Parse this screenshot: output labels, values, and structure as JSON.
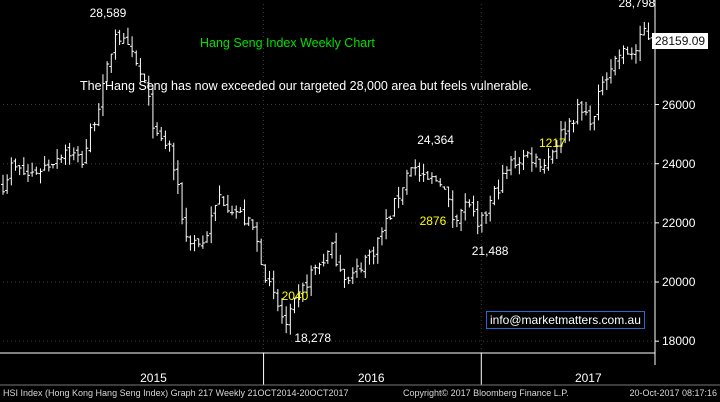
{
  "chart_data": {
    "type": "ohlc",
    "title": "Hang Seng Index Weekly Chart",
    "subtitle": "The Hang Seng has now exceeded our targeted 28,000 area but feels vulnerable.",
    "ylim": [
      17600,
      29400
    ],
    "yticks": [
      18000,
      20000,
      22000,
      24000,
      26000
    ],
    "ytick_labels": [
      "18000",
      "20000",
      "22000",
      "24000",
      "26000"
    ],
    "last_value": 28159.09,
    "last_value_label": "28159.09",
    "xlim": [
      "2014-10-20",
      "2017-10-20"
    ],
    "year_labels": [
      {
        "label": "2015",
        "date": "2015-07-01"
      },
      {
        "label": "2016",
        "date": "2016-07-01"
      },
      {
        "label": "2017",
        "date": "2017-07-01"
      }
    ],
    "year_boundaries": [
      "2016-01-01",
      "2017-01-01"
    ],
    "anchor_closes": [
      [
        "2014-10-20",
        23300
      ],
      [
        "2014-11-03",
        23900
      ],
      [
        "2014-12-01",
        23600
      ],
      [
        "2015-01-05",
        24000
      ],
      [
        "2015-02-02",
        24500
      ],
      [
        "2015-03-02",
        24100
      ],
      [
        "2015-04-06",
        26500
      ],
      [
        "2015-04-27",
        28500
      ],
      [
        "2015-05-25",
        27600
      ],
      [
        "2015-06-15",
        26700
      ],
      [
        "2015-07-06",
        24800
      ],
      [
        "2015-07-27",
        24600
      ],
      [
        "2015-08-24",
        21500
      ],
      [
        "2015-09-21",
        21300
      ],
      [
        "2015-10-19",
        22900
      ],
      [
        "2015-11-16",
        22400
      ],
      [
        "2015-12-14",
        21800
      ],
      [
        "2016-01-11",
        19800
      ],
      [
        "2016-02-08",
        18500
      ],
      [
        "2016-02-22",
        19200
      ],
      [
        "2016-03-21",
        20300
      ],
      [
        "2016-04-25",
        21100
      ],
      [
        "2016-05-23",
        20000
      ],
      [
        "2016-06-20",
        20800
      ],
      [
        "2016-07-04",
        21100
      ],
      [
        "2016-08-08",
        22600
      ],
      [
        "2016-09-05",
        24000
      ],
      [
        "2016-09-26",
        23400
      ],
      [
        "2016-10-24",
        23500
      ],
      [
        "2016-11-14",
        22200
      ],
      [
        "2016-12-12",
        22700
      ],
      [
        "2016-12-26",
        21700
      ],
      [
        "2017-01-23",
        23000
      ],
      [
        "2017-02-20",
        24000
      ],
      [
        "2017-03-20",
        24300
      ],
      [
        "2017-04-17",
        24000
      ],
      [
        "2017-05-15",
        25000
      ],
      [
        "2017-06-12",
        25800
      ],
      [
        "2017-07-10",
        25500
      ],
      [
        "2017-07-24",
        26900
      ],
      [
        "2017-08-21",
        27700
      ],
      [
        "2017-09-18",
        27800
      ],
      [
        "2017-10-02",
        28500
      ],
      [
        "2017-10-16",
        28159
      ]
    ],
    "annotations": [
      {
        "label": "28,589",
        "date": "2015-05-04",
        "value": 28589,
        "color": "#ffffff"
      },
      {
        "label": "18,278",
        "date": "2016-02-15",
        "value": 18278,
        "color": "#ffffff"
      },
      {
        "label": "2040",
        "date": "2016-03-15",
        "value": 19300,
        "color": "#ffff00"
      },
      {
        "label": "24,364",
        "date": "2016-09-12",
        "value": 24364,
        "color": "#ffffff"
      },
      {
        "label": "2876",
        "date": "2016-09-26",
        "value": 22500,
        "color": "#ffff00"
      },
      {
        "label": "21,488",
        "date": "2016-12-26",
        "value": 21488,
        "color": "#ffffff"
      },
      {
        "label": "1217",
        "date": "2017-05-15",
        "value": 25000,
        "color": "#ffff00"
      },
      {
        "label": "28,798",
        "date": "2017-10-09",
        "value": 28798,
        "color": "#ffffff"
      }
    ]
  },
  "watermark": "info@marketmatters.com.au",
  "footer": {
    "left": "HSI Index (Hong Kong Hang Seng Index) Graph 217  Weekly 21OCT2014-20OCT2017",
    "center": "Copyright© 2017 Bloomberg Finance L.P.",
    "right": "20-Oct-2017 08:17:16"
  },
  "colors": {
    "background": "#000000",
    "bars": "#ffffff",
    "title": "#00e000",
    "callout": "#ffff00",
    "watermark_border": "#1e6ed2"
  }
}
